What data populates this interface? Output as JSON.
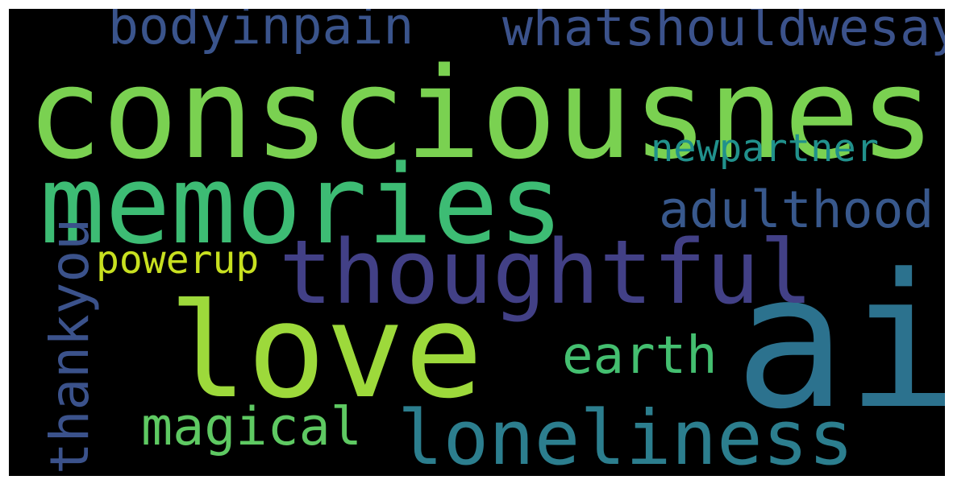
{
  "words": [
    {
      "key": "consciousness",
      "text": "consciousness",
      "color": "#7ad151"
    },
    {
      "key": "memories",
      "text": "memories",
      "color": "#3dbc74"
    },
    {
      "key": "love",
      "text": "love",
      "color": "#9dd93b"
    },
    {
      "key": "ai",
      "text": "ai",
      "color": "#2c728e"
    },
    {
      "key": "thoughtful",
      "text": "thoughtful",
      "color": "#424086"
    },
    {
      "key": "loneliness",
      "text": "loneliness",
      "color": "#2c7e8e"
    },
    {
      "key": "bodyinpain",
      "text": "bodyinpain",
      "color": "#3a548c"
    },
    {
      "key": "whatshouldwesay",
      "text": "whatshouldwesay",
      "color": "#3b528b"
    },
    {
      "key": "adulthood",
      "text": "adulthood",
      "color": "#38588c"
    },
    {
      "key": "newpartner",
      "text": "newpartner",
      "color": "#21918c"
    },
    {
      "key": "earth",
      "text": "earth",
      "color": "#44bf70"
    },
    {
      "key": "magical",
      "text": "magical",
      "color": "#5ec962"
    },
    {
      "key": "powerup",
      "text": "powerup",
      "color": "#c8e020"
    },
    {
      "key": "thankyou",
      "text": "thankyou",
      "color": "#3b528b"
    }
  ]
}
